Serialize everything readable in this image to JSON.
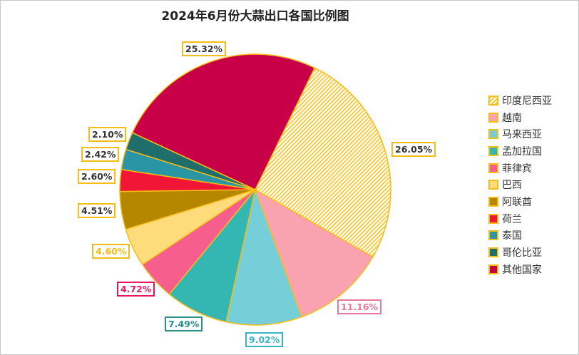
{
  "chart_data": {
    "type": "pie",
    "title": "2024年6月份大蒜出口各国比例图",
    "categories": [
      "印度尼西亚",
      "越南",
      "马来西亚",
      "孟加拉国",
      "菲律宾",
      "巴西",
      "阿联酋",
      "荷兰",
      "泰国",
      "哥伦比亚",
      "其他国家"
    ],
    "values": [
      26.05,
      11.16,
      9.02,
      7.49,
      4.72,
      4.6,
      4.51,
      2.6,
      2.42,
      2.1,
      25.32
    ],
    "labels": [
      "26.05%",
      "11.16%",
      "9.02%",
      "7.49%",
      "4.72%",
      "4.60%",
      "4.51%",
      "2.60%",
      "2.42%",
      "2.10%",
      "25.32%"
    ],
    "colors": [
      "#f9c320",
      "#f9a3b1",
      "#76cfd8",
      "#34b6b3",
      "#f55e8d",
      "#fedc7c",
      "#b58700",
      "#f21636",
      "#2a96a5",
      "#1f6e6c",
      "#c80047"
    ],
    "label_colors": [
      "#f6bd16",
      "#e8799a",
      "#3bb4c4",
      "#2a8f8c",
      "#e8175d",
      "#f6bd16",
      "#f6bd16",
      "#f6bd16",
      "#f6bd16",
      "#f6bd16",
      "#f6bd16"
    ],
    "label_text_colors": [
      "#333",
      "#e8799a",
      "#3bb4c4",
      "#2a8f8c",
      "#e8175d",
      "#f6bd16",
      "#333",
      "#333",
      "#333",
      "#333",
      "#333"
    ],
    "hatched": [
      "印度尼西亚"
    ],
    "legend_placement": "right"
  }
}
